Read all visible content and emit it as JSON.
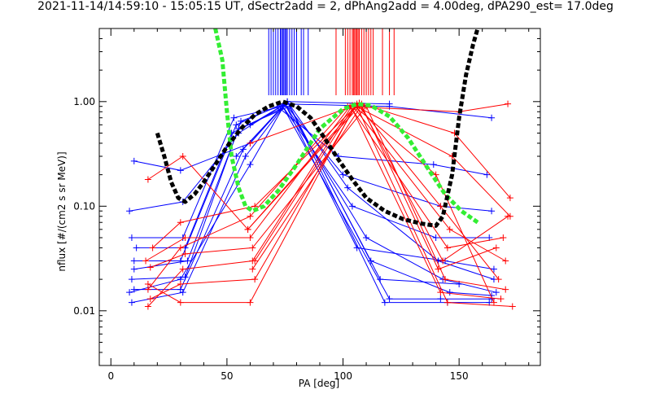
{
  "chart_data": {
    "type": "line",
    "title": "2021-11-14/14:59:10 - 15:05:15 UT, dSectr2add = 2, dPhAng2add = 4.00deg, dPA290_est=  17.0deg",
    "xlabel": "PA [deg]",
    "ylabel": "nflux [#/(cm2 s sr MeV)]",
    "xlim": [
      -5,
      185
    ],
    "ylim": [
      0.003,
      5.0
    ],
    "yscale": "log",
    "xticks": [
      0,
      50,
      100,
      150
    ],
    "xtick_labels": [
      "0",
      "50",
      "100",
      "150"
    ],
    "yticks": [
      0.01,
      0.1,
      1.0
    ],
    "ytick_labels": [
      "0.01",
      "0.10",
      "1.00"
    ],
    "grid": false,
    "colors": {
      "blue": "#0000ff",
      "red": "#ff0000",
      "green": "#33ee33",
      "black": "#000000"
    },
    "series": [
      {
        "color": "blue",
        "marker": "+",
        "values": [
          {
            "x": [
              10,
              30,
              60,
              76,
              120
            ],
            "y": [
              0.27,
              0.22,
              0.4,
              1.0,
              0.95
            ]
          },
          {
            "x": [
              8,
              31,
              55,
              75,
              100,
              142,
              164
            ],
            "y": [
              0.09,
              0.11,
              0.5,
              0.95,
              0.2,
              0.1,
              0.09
            ]
          },
          {
            "x": [
              9,
              31,
              53,
              74,
              104,
              140,
              163
            ],
            "y": [
              0.05,
              0.05,
              0.7,
              0.9,
              0.1,
              0.05,
              0.05
            ]
          },
          {
            "x": [
              10,
              30,
              54,
              76,
              102,
              141,
              165
            ],
            "y": [
              0.03,
              0.03,
              0.6,
              1.0,
              0.15,
              0.03,
              0.02
            ]
          },
          {
            "x": [
              9,
              32,
              56,
              75,
              110,
              143,
              166
            ],
            "y": [
              0.02,
              0.021,
              0.65,
              0.95,
              0.05,
              0.02,
              0.015
            ]
          },
          {
            "x": [
              10,
              30,
              57,
              74,
              120,
              142,
              164
            ],
            "y": [
              0.016,
              0.016,
              0.35,
              0.9,
              0.013,
              0.013,
              0.013
            ]
          },
          {
            "x": [
              9,
              31,
              58,
              76,
              118,
              145,
              163
            ],
            "y": [
              0.012,
              0.015,
              0.3,
              1.0,
              0.012,
              0.012,
              0.012
            ]
          },
          {
            "x": [
              11,
              32,
              52,
              73,
              98,
              139,
              162
            ],
            "y": [
              0.04,
              0.04,
              0.5,
              0.85,
              0.3,
              0.25,
              0.2
            ]
          },
          {
            "x": [
              8,
              30,
              60,
              75,
              106,
              144,
              165
            ],
            "y": [
              0.015,
              0.02,
              0.25,
              0.95,
              0.04,
              0.03,
              0.025
            ]
          },
          {
            "x": [
              10,
              33,
              55,
              77,
              112,
              146,
              164
            ],
            "y": [
              0.025,
              0.03,
              0.55,
              0.9,
              0.03,
              0.015,
              0.014
            ]
          },
          {
            "x": [
              60,
              75,
              120,
              164
            ],
            "y": [
              0.6,
              0.95,
              0.9,
              0.7
            ]
          },
          {
            "x": [
              54,
              76,
              116,
              150
            ],
            "y": [
              0.3,
              1.0,
              0.02,
              0.018
            ]
          }
        ]
      },
      {
        "color": "red",
        "marker": "+",
        "values": [
          {
            "x": [
              16,
              30,
              60,
              105,
              140,
              165
            ],
            "y": [
              0.018,
              0.012,
              0.012,
              0.9,
              0.2,
              0.012
            ]
          },
          {
            "x": [
              17,
              30,
              62,
              106,
              142,
              167
            ],
            "y": [
              0.013,
              0.018,
              0.02,
              0.95,
              0.1,
              0.02
            ]
          },
          {
            "x": [
              16,
              31,
              61,
              104,
              146,
              170
            ],
            "y": [
              0.011,
              0.025,
              0.03,
              0.92,
              0.06,
              0.03
            ]
          },
          {
            "x": [
              15,
              32,
              60,
              103,
              145,
              169
            ],
            "y": [
              0.03,
              0.05,
              0.05,
              0.9,
              0.04,
              0.05
            ]
          },
          {
            "x": [
              18,
              30,
              62,
              107,
              143,
              171
            ],
            "y": [
              0.04,
              0.07,
              0.1,
              0.97,
              0.03,
              0.08
            ]
          },
          {
            "x": [
              16,
              31,
              59,
              108,
              148,
              172
            ],
            "y": [
              0.18,
              0.3,
              0.06,
              0.95,
              0.5,
              0.12
            ]
          },
          {
            "x": [
              17,
              32,
              61,
              110,
              144,
              170
            ],
            "y": [
              0.026,
              0.035,
              0.04,
              0.9,
              0.02,
              0.016
            ]
          },
          {
            "x": [
              16,
              30,
              60,
              102,
              150,
              171
            ],
            "y": [
              0.016,
              0.04,
              0.08,
              0.9,
              0.8,
              0.95
            ]
          },
          {
            "x": [
              60,
              105,
              147,
              172
            ],
            "y": [
              0.4,
              0.92,
              0.3,
              0.08
            ]
          },
          {
            "x": [
              62,
              104,
              142,
              168
            ],
            "y": [
              0.03,
              0.85,
              0.015,
              0.013
            ]
          },
          {
            "x": [
              59,
              106,
              145,
              173
            ],
            "y": [
              0.06,
              0.9,
              0.012,
              0.011
            ]
          },
          {
            "x": [
              61,
              108,
              141,
              166
            ],
            "y": [
              0.025,
              0.92,
              0.025,
              0.04
            ]
          }
        ]
      },
      {
        "color": "green",
        "style": "thick-dashed",
        "values": [
          {
            "x": [
              45,
              48,
              50,
              52,
              55,
              58,
              61,
              66,
              72,
              80,
              90,
              100,
              106,
              112,
              120,
              128,
              136,
              144,
              151,
              158
            ],
            "y": [
              5.0,
              2.5,
              0.8,
              0.3,
              0.15,
              0.1,
              0.09,
              0.1,
              0.14,
              0.25,
              0.55,
              0.85,
              0.95,
              0.92,
              0.72,
              0.45,
              0.24,
              0.13,
              0.09,
              0.07
            ]
          }
        ]
      },
      {
        "color": "black",
        "style": "thick-dashed",
        "values": [
          {
            "x": [
              20,
              23,
              26,
              29,
              32,
              36,
              40,
              45,
              50,
              56,
              62,
              68,
              74,
              80,
              86,
              92,
              98,
              104,
              110,
              118,
              126,
              134,
              140,
              143,
              147,
              150,
              153,
              156,
              158
            ],
            "y": [
              0.5,
              0.3,
              0.17,
              0.12,
              0.11,
              0.13,
              0.17,
              0.25,
              0.37,
              0.55,
              0.75,
              0.9,
              1.0,
              0.9,
              0.7,
              0.45,
              0.28,
              0.18,
              0.12,
              0.09,
              0.075,
              0.068,
              0.065,
              0.08,
              0.2,
              0.7,
              1.8,
              3.5,
              5.0
            ]
          }
        ]
      }
    ],
    "vertical_markers": [
      {
        "color": "blue",
        "x": [
          68,
          69,
          70,
          71,
          72,
          73,
          73.5,
          74,
          74.5,
          75,
          75.5,
          76,
          77,
          78,
          79,
          80,
          82,
          83,
          85
        ]
      },
      {
        "color": "red",
        "x": [
          97,
          101,
          102,
          103,
          104,
          104.5,
          105,
          105.5,
          106,
          106.5,
          107,
          108,
          109,
          110,
          111,
          112,
          113,
          117,
          120,
          122
        ]
      }
    ]
  }
}
